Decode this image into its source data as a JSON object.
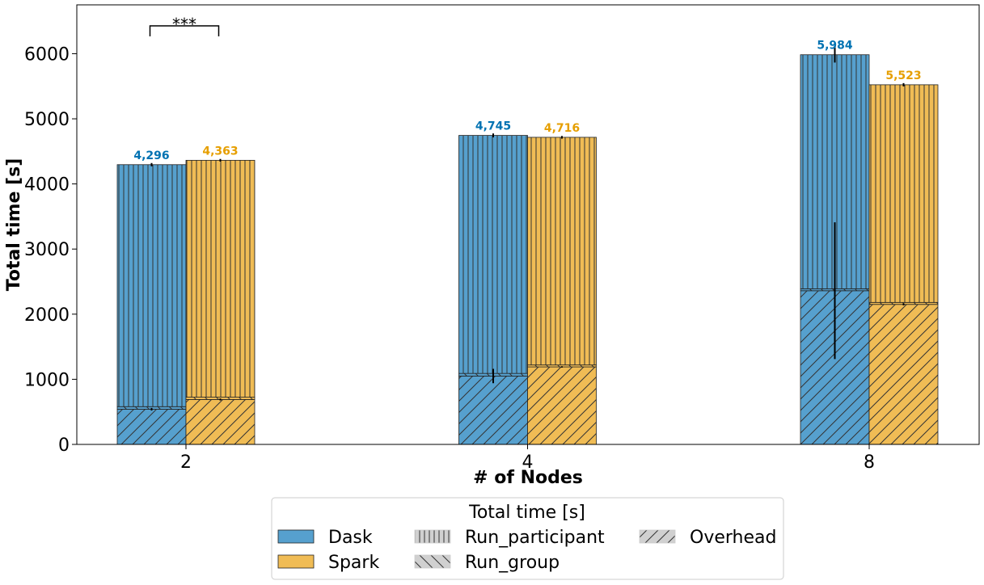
{
  "chart_data": {
    "type": "bar",
    "stacked": true,
    "grouped": true,
    "xlabel": "# of Nodes",
    "ylabel": "Total time [s]",
    "categories": [
      "2",
      "4",
      "8"
    ],
    "ylim": [
      0,
      6750
    ],
    "yticks": [
      0,
      1000,
      2000,
      3000,
      4000,
      5000,
      6000
    ],
    "grid": false,
    "series": [
      {
        "name": "Dask",
        "color": "#56A0CE",
        "label_color": "#0072B2",
        "components": {
          "Overhead": [
            540,
            1050,
            2360
          ],
          "Run_group": [
            40,
            40,
            30
          ],
          "Run_participant": [
            3716,
            3655,
            3594
          ]
        },
        "totals": [
          4296,
          4745,
          5984
        ],
        "total_labels": [
          "4,296",
          "4,745",
          "5,984"
        ],
        "total_error": [
          25,
          30,
          120
        ],
        "overhead_error": [
          20,
          110,
          1050
        ]
      },
      {
        "name": "Spark",
        "color": "#F0BC55",
        "label_color": "#E69F00",
        "components": {
          "Overhead": [
            690,
            1190,
            2150
          ],
          "Run_group": [
            35,
            30,
            30
          ],
          "Run_participant": [
            3638,
            3496,
            3343
          ]
        },
        "totals": [
          4363,
          4716,
          5523
        ],
        "total_labels": [
          "4,363",
          "4,716",
          "5,523"
        ],
        "total_error": [
          20,
          20,
          25
        ],
        "overhead_error": [
          15,
          10,
          15
        ]
      }
    ],
    "annotations": [
      {
        "text": "***",
        "category": "2",
        "type": "significance-bracket"
      }
    ],
    "legend": {
      "title": "Total time [s]",
      "placement": "bottom-center",
      "entries": [
        {
          "label": "Dask",
          "kind": "color"
        },
        {
          "label": "Spark",
          "kind": "color"
        },
        {
          "label": "Run_participant",
          "kind": "hatch",
          "hatch": "vertical"
        },
        {
          "label": "Run_group",
          "kind": "hatch",
          "hatch": "backslash"
        },
        {
          "label": "Overhead",
          "kind": "hatch",
          "hatch": "slash"
        }
      ]
    }
  }
}
